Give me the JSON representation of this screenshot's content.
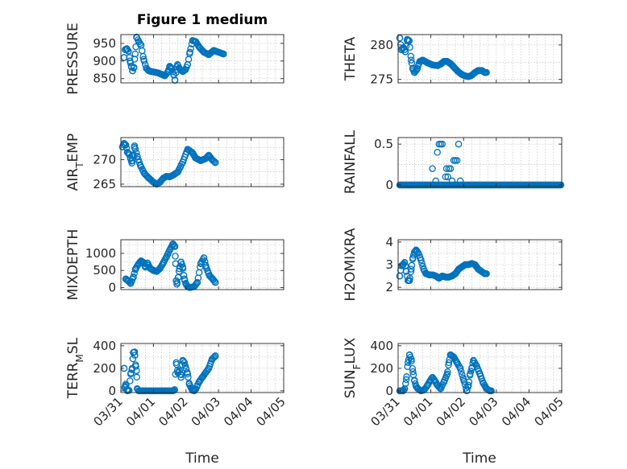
{
  "chart_data": {
    "type": "scatter",
    "title": "Figure 1 medium",
    "shared_x": {
      "label": "Time",
      "ticks": [
        "03/31",
        "04/01",
        "04/02",
        "04/03",
        "04/04",
        "04/05"
      ],
      "range_days": [
        0,
        5
      ],
      "note": "x in days since 03/31 00:00"
    },
    "panels": [
      {
        "id": "pressure",
        "ylabel": "PRESSURE",
        "ylim": [
          838,
          975
        ],
        "yticks": [
          850,
          900,
          950
        ],
        "ytick_labels": [
          "850",
          "900",
          "950"
        ],
        "keys": [
          [
            0.1,
            910
          ],
          [
            0.13,
            932
          ],
          [
            0.18,
            935
          ],
          [
            0.23,
            928
          ],
          [
            0.28,
            900
          ],
          [
            0.32,
            885
          ],
          [
            0.36,
            872
          ],
          [
            0.4,
            882
          ],
          [
            0.44,
            920
          ],
          [
            0.48,
            968
          ],
          [
            0.55,
            955
          ],
          [
            0.62,
            945
          ],
          [
            0.7,
            905
          ],
          [
            0.78,
            880
          ],
          [
            0.86,
            872
          ],
          [
            0.94,
            870
          ],
          [
            1.05,
            868
          ],
          [
            1.15,
            866
          ],
          [
            1.25,
            862
          ],
          [
            1.35,
            858
          ],
          [
            1.45,
            870
          ],
          [
            1.5,
            885
          ],
          [
            1.55,
            880
          ],
          [
            1.62,
            862
          ],
          [
            1.66,
            845
          ],
          [
            1.7,
            875
          ],
          [
            1.74,
            890
          ],
          [
            1.8,
            878
          ],
          [
            1.9,
            870
          ],
          [
            1.98,
            875
          ],
          [
            2.05,
            890
          ],
          [
            2.12,
            925
          ],
          [
            2.2,
            958
          ],
          [
            2.3,
            955
          ],
          [
            2.42,
            938
          ],
          [
            2.55,
            925
          ],
          [
            2.7,
            918
          ],
          [
            2.85,
            930
          ],
          [
            3.0,
            925
          ],
          [
            3.15,
            920
          ]
        ],
        "xmax": 3.15
      },
      {
        "id": "theta",
        "ylabel": "THETA",
        "ylim": [
          274.5,
          281.5
        ],
        "yticks": [
          275,
          280
        ],
        "ytick_labels": [
          "275",
          "280"
        ],
        "keys": [
          [
            0.05,
            281
          ],
          [
            0.1,
            279.3
          ],
          [
            0.16,
            279.6
          ],
          [
            0.22,
            279
          ],
          [
            0.28,
            280.8
          ],
          [
            0.34,
            280.6
          ],
          [
            0.4,
            277.8
          ],
          [
            0.45,
            276.5
          ],
          [
            0.5,
            276
          ],
          [
            0.58,
            276.5
          ],
          [
            0.66,
            277.6
          ],
          [
            0.75,
            277.8
          ],
          [
            0.9,
            277.4
          ],
          [
            1.05,
            277.1
          ],
          [
            1.2,
            277
          ],
          [
            1.3,
            277.2
          ],
          [
            1.4,
            277.6
          ],
          [
            1.5,
            277.6
          ],
          [
            1.6,
            277.3
          ],
          [
            1.7,
            276.8
          ],
          [
            1.82,
            276.2
          ],
          [
            1.95,
            275.7
          ],
          [
            2.05,
            275.5
          ],
          [
            2.15,
            275.4
          ],
          [
            2.25,
            275.6
          ],
          [
            2.35,
            276
          ],
          [
            2.45,
            276.3
          ],
          [
            2.55,
            276.3
          ],
          [
            2.65,
            276
          ]
        ],
        "xmax": 2.7
      },
      {
        "id": "air_temp",
        "ylabel": "AIR_TEMP",
        "ylim": [
          264.5,
          274.5
        ],
        "yticks": [
          265,
          270
        ],
        "ytick_labels": [
          "265",
          "270"
        ],
        "keys": [
          [
            0.05,
            272.6
          ],
          [
            0.1,
            273.3
          ],
          [
            0.15,
            273
          ],
          [
            0.2,
            271.5
          ],
          [
            0.25,
            271.2
          ],
          [
            0.3,
            270.2
          ],
          [
            0.34,
            269.3
          ],
          [
            0.38,
            270.8
          ],
          [
            0.42,
            272.8
          ],
          [
            0.5,
            270.7
          ],
          [
            0.6,
            268.8
          ],
          [
            0.72,
            267.2
          ],
          [
            0.85,
            266.3
          ],
          [
            1.0,
            265.4
          ],
          [
            1.1,
            265
          ],
          [
            1.2,
            265.4
          ],
          [
            1.3,
            266.2
          ],
          [
            1.4,
            266.6
          ],
          [
            1.5,
            266.5
          ],
          [
            1.62,
            266.9
          ],
          [
            1.75,
            267.5
          ],
          [
            1.9,
            269.5
          ],
          [
            2.05,
            272.1
          ],
          [
            2.2,
            271.4
          ],
          [
            2.3,
            270.3
          ],
          [
            2.45,
            269.8
          ],
          [
            2.6,
            270.2
          ],
          [
            2.7,
            270.9
          ],
          [
            2.8,
            270
          ],
          [
            2.9,
            269.4
          ]
        ],
        "xmax": 2.9
      },
      {
        "id": "rainfall",
        "ylabel": "RAINFALL",
        "ylim": [
          -0.02,
          0.58
        ],
        "yticks": [
          0,
          0.5
        ],
        "ytick_labels": [
          "0",
          "0.5"
        ],
        "base_value": 0,
        "base_span": [
          0.05,
          4.98
        ],
        "spikes": [
          [
            1.05,
            0.2
          ],
          [
            1.15,
            0.05
          ],
          [
            1.2,
            0.4
          ],
          [
            1.25,
            0.5
          ],
          [
            1.3,
            0.5
          ],
          [
            1.35,
            0.5
          ],
          [
            1.45,
            0.1
          ],
          [
            1.48,
            0.2
          ],
          [
            1.52,
            0.1
          ],
          [
            1.55,
            0.2
          ],
          [
            1.6,
            0.2
          ],
          [
            1.65,
            0.05
          ],
          [
            1.7,
            0.3
          ],
          [
            1.75,
            0.3
          ],
          [
            1.8,
            0.3
          ],
          [
            1.85,
            0.5
          ],
          [
            1.9,
            0.05
          ]
        ]
      },
      {
        "id": "mixdepth",
        "ylabel": "MIXDEPTH",
        "ylim": [
          -60,
          1400
        ],
        "yticks": [
          0,
          500,
          1000
        ],
        "ytick_labels": [
          "0",
          "500",
          "1000"
        ],
        "keys": [
          [
            0.15,
            250
          ],
          [
            0.22,
            200
          ],
          [
            0.3,
            120
          ],
          [
            0.38,
            300
          ],
          [
            0.45,
            550
          ],
          [
            0.55,
            700
          ],
          [
            0.62,
            780
          ],
          [
            0.7,
            730
          ],
          [
            0.75,
            600
          ],
          [
            0.82,
            720
          ],
          [
            0.9,
            560
          ],
          [
            1.0,
            500
          ],
          [
            1.1,
            470
          ],
          [
            1.2,
            560
          ],
          [
            1.3,
            720
          ],
          [
            1.4,
            900
          ],
          [
            1.5,
            1100
          ],
          [
            1.6,
            1280
          ],
          [
            1.66,
            1200
          ],
          [
            1.68,
            700
          ],
          [
            1.7,
            200
          ],
          [
            1.72,
            100
          ],
          [
            1.76,
            300
          ],
          [
            1.8,
            550
          ],
          [
            1.85,
            750
          ],
          [
            1.9,
            600
          ],
          [
            1.95,
            250
          ],
          [
            2.0,
            100
          ],
          [
            2.05,
            30
          ],
          [
            2.12,
            0
          ],
          [
            2.25,
            30
          ],
          [
            2.35,
            150
          ],
          [
            2.45,
            700
          ],
          [
            2.55,
            870
          ],
          [
            2.62,
            600
          ],
          [
            2.72,
            350
          ],
          [
            2.82,
            250
          ],
          [
            2.9,
            150
          ]
        ],
        "xmax": 2.9
      },
      {
        "id": "h2omixra",
        "ylabel": "H2OMIXRA",
        "ylim": [
          1.9,
          4.1
        ],
        "yticks": [
          2,
          3,
          4
        ],
        "ytick_labels": [
          "2",
          "3",
          "4"
        ],
        "keys": [
          [
            0.05,
            2.5
          ],
          [
            0.1,
            2.95
          ],
          [
            0.15,
            3
          ],
          [
            0.2,
            3.1
          ],
          [
            0.25,
            2.7
          ],
          [
            0.3,
            2.3
          ],
          [
            0.35,
            2.3
          ],
          [
            0.4,
            2.8
          ],
          [
            0.45,
            3.3
          ],
          [
            0.5,
            3.55
          ],
          [
            0.55,
            3.65
          ],
          [
            0.62,
            3.5
          ],
          [
            0.7,
            3.2
          ],
          [
            0.78,
            2.8
          ],
          [
            0.85,
            2.6
          ],
          [
            0.95,
            2.55
          ],
          [
            1.05,
            2.55
          ],
          [
            1.15,
            2.5
          ],
          [
            1.25,
            2.4
          ],
          [
            1.35,
            2.5
          ],
          [
            1.45,
            2.45
          ],
          [
            1.55,
            2.45
          ],
          [
            1.65,
            2.5
          ],
          [
            1.75,
            2.6
          ],
          [
            1.85,
            2.8
          ],
          [
            1.95,
            2.9
          ],
          [
            2.05,
            3.0
          ],
          [
            2.15,
            3.0
          ],
          [
            2.25,
            3.05
          ],
          [
            2.35,
            3.0
          ],
          [
            2.45,
            2.8
          ],
          [
            2.55,
            2.7
          ],
          [
            2.65,
            2.6
          ]
        ],
        "xmax": 2.7
      },
      {
        "id": "terr_msl",
        "ylabel": "TERR_MSL",
        "ylim": [
          -15,
          420
        ],
        "yticks": [
          0,
          200,
          400
        ],
        "ytick_labels": [
          "0",
          "200",
          "400"
        ],
        "keys": [
          [
            0.1,
            200
          ],
          [
            0.12,
            30
          ],
          [
            0.15,
            60
          ],
          [
            0.2,
            0
          ],
          [
            0.25,
            5
          ],
          [
            0.3,
            150
          ],
          [
            0.35,
            200
          ],
          [
            0.38,
            340
          ],
          [
            0.42,
            345
          ],
          [
            0.45,
            230
          ],
          [
            0.48,
            180
          ],
          [
            0.5,
            20
          ],
          [
            0.55,
            0
          ],
          [
            1.6,
            0
          ],
          [
            1.65,
            10
          ],
          [
            1.7,
            250
          ],
          [
            1.75,
            160
          ],
          [
            1.8,
            180
          ],
          [
            1.85,
            120
          ],
          [
            1.9,
            270
          ],
          [
            1.95,
            250
          ],
          [
            2.0,
            200
          ],
          [
            2.05,
            150
          ],
          [
            2.1,
            60
          ],
          [
            2.15,
            30
          ],
          [
            2.2,
            5
          ],
          [
            2.25,
            0
          ],
          [
            2.3,
            15
          ],
          [
            2.4,
            80
          ],
          [
            2.5,
            120
          ],
          [
            2.6,
            160
          ],
          [
            2.7,
            200
          ],
          [
            2.8,
            280
          ],
          [
            2.9,
            310
          ]
        ],
        "xmax": 2.9
      },
      {
        "id": "sun_flux",
        "ylabel": "SUN_FLUX",
        "ylim": [
          -15,
          420
        ],
        "yticks": [
          0,
          200,
          400
        ],
        "ytick_labels": [
          "0",
          "200",
          "400"
        ],
        "keys": [
          [
            0.05,
            0
          ],
          [
            0.1,
            0
          ],
          [
            0.15,
            0
          ],
          [
            0.2,
            20
          ],
          [
            0.25,
            100
          ],
          [
            0.3,
            250
          ],
          [
            0.35,
            320
          ],
          [
            0.4,
            280
          ],
          [
            0.45,
            170
          ],
          [
            0.5,
            90
          ],
          [
            0.55,
            40
          ],
          [
            0.6,
            20
          ],
          [
            0.7,
            0
          ],
          [
            0.8,
            10
          ],
          [
            0.9,
            50
          ],
          [
            1.0,
            100
          ],
          [
            1.05,
            120
          ],
          [
            1.1,
            100
          ],
          [
            1.2,
            50
          ],
          [
            1.3,
            20
          ],
          [
            1.4,
            80
          ],
          [
            1.5,
            150
          ],
          [
            1.55,
            250
          ],
          [
            1.6,
            320
          ],
          [
            1.7,
            300
          ],
          [
            1.8,
            250
          ],
          [
            1.9,
            200
          ],
          [
            2.0,
            100
          ],
          [
            2.1,
            0
          ],
          [
            2.15,
            50
          ],
          [
            2.2,
            150
          ],
          [
            2.25,
            200
          ],
          [
            2.3,
            270
          ],
          [
            2.4,
            220
          ],
          [
            2.5,
            150
          ],
          [
            2.6,
            70
          ],
          [
            2.7,
            20
          ],
          [
            2.8,
            0
          ]
        ],
        "xmax": 2.85
      }
    ]
  }
}
